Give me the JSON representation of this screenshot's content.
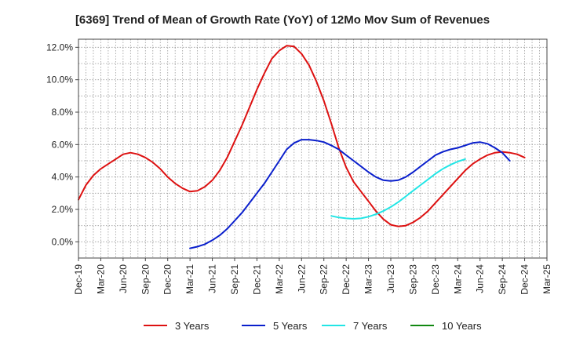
{
  "chart_data": {
    "type": "line",
    "title": "[6369]  Trend of Mean of Growth Rate (YoY) of 12Mo Mov Sum of Revenues",
    "xlabel": "",
    "ylabel": "",
    "ylim": [
      -1.0,
      12.5
    ],
    "yticks": [
      0,
      2,
      4,
      6,
      8,
      10,
      12
    ],
    "ytick_labels": [
      "0.0%",
      "2.0%",
      "4.0%",
      "6.0%",
      "8.0%",
      "10.0%",
      "12.0%"
    ],
    "x_tick_labels": [
      "Dec-19",
      "Mar-20",
      "Jun-20",
      "Sep-20",
      "Dec-20",
      "Mar-21",
      "Jun-21",
      "Sep-21",
      "Dec-21",
      "Mar-22",
      "Jun-22",
      "Sep-22",
      "Dec-22",
      "Mar-23",
      "Jun-23",
      "Sep-23",
      "Dec-23",
      "Mar-24",
      "Jun-24",
      "Sep-24",
      "Dec-24",
      "Mar-25"
    ],
    "x_range_months": [
      0,
      63
    ],
    "grid": true,
    "legend_position": "bottom",
    "series": [
      {
        "name": "3 Years",
        "color": "#dd1111",
        "points": [
          [
            0,
            2.6
          ],
          [
            1,
            3.5
          ],
          [
            2,
            4.1
          ],
          [
            3,
            4.5
          ],
          [
            4,
            4.8
          ],
          [
            5,
            5.1
          ],
          [
            6,
            5.4
          ],
          [
            7,
            5.5
          ],
          [
            8,
            5.4
          ],
          [
            9,
            5.2
          ],
          [
            10,
            4.9
          ],
          [
            11,
            4.5
          ],
          [
            12,
            4.0
          ],
          [
            13,
            3.6
          ],
          [
            14,
            3.3
          ],
          [
            15,
            3.1
          ],
          [
            16,
            3.15
          ],
          [
            17,
            3.4
          ],
          [
            18,
            3.8
          ],
          [
            19,
            4.4
          ],
          [
            20,
            5.2
          ],
          [
            21,
            6.2
          ],
          [
            22,
            7.2
          ],
          [
            23,
            8.3
          ],
          [
            24,
            9.4
          ],
          [
            25,
            10.4
          ],
          [
            26,
            11.3
          ],
          [
            27,
            11.8
          ],
          [
            28,
            12.1
          ],
          [
            29,
            12.05
          ],
          [
            30,
            11.6
          ],
          [
            31,
            10.9
          ],
          [
            32,
            9.9
          ],
          [
            33,
            8.7
          ],
          [
            34,
            7.3
          ],
          [
            35,
            5.8
          ],
          [
            36,
            4.6
          ],
          [
            37,
            3.7
          ],
          [
            38,
            3.1
          ],
          [
            39,
            2.5
          ],
          [
            40,
            1.9
          ],
          [
            41,
            1.4
          ],
          [
            42,
            1.05
          ],
          [
            43,
            0.95
          ],
          [
            44,
            1.0
          ],
          [
            45,
            1.2
          ],
          [
            46,
            1.5
          ],
          [
            47,
            1.9
          ],
          [
            48,
            2.4
          ],
          [
            49,
            2.9
          ],
          [
            50,
            3.4
          ],
          [
            51,
            3.9
          ],
          [
            52,
            4.4
          ],
          [
            53,
            4.8
          ],
          [
            54,
            5.1
          ],
          [
            55,
            5.35
          ],
          [
            56,
            5.5
          ],
          [
            57,
            5.55
          ],
          [
            58,
            5.5
          ],
          [
            59,
            5.4
          ],
          [
            60,
            5.2
          ]
        ]
      },
      {
        "name": "5 Years",
        "color": "#0a1fcc",
        "points": [
          [
            15,
            -0.4
          ],
          [
            16,
            -0.3
          ],
          [
            17,
            -0.15
          ],
          [
            18,
            0.1
          ],
          [
            19,
            0.4
          ],
          [
            20,
            0.8
          ],
          [
            21,
            1.3
          ],
          [
            22,
            1.8
          ],
          [
            23,
            2.4
          ],
          [
            24,
            3.0
          ],
          [
            25,
            3.6
          ],
          [
            26,
            4.3
          ],
          [
            27,
            5.0
          ],
          [
            28,
            5.7
          ],
          [
            29,
            6.1
          ],
          [
            30,
            6.3
          ],
          [
            31,
            6.3
          ],
          [
            32,
            6.25
          ],
          [
            33,
            6.15
          ],
          [
            34,
            5.95
          ],
          [
            35,
            5.7
          ],
          [
            36,
            5.35
          ],
          [
            37,
            5.0
          ],
          [
            38,
            4.65
          ],
          [
            39,
            4.3
          ],
          [
            40,
            4.0
          ],
          [
            41,
            3.8
          ],
          [
            42,
            3.75
          ],
          [
            43,
            3.8
          ],
          [
            44,
            4.0
          ],
          [
            45,
            4.3
          ],
          [
            46,
            4.65
          ],
          [
            47,
            5.0
          ],
          [
            48,
            5.35
          ],
          [
            49,
            5.55
          ],
          [
            50,
            5.7
          ],
          [
            51,
            5.8
          ],
          [
            52,
            5.95
          ],
          [
            53,
            6.1
          ],
          [
            54,
            6.15
          ],
          [
            55,
            6.05
          ],
          [
            56,
            5.8
          ],
          [
            57,
            5.5
          ],
          [
            58,
            5.0
          ]
        ]
      },
      {
        "name": "7 Years",
        "color": "#22e5e5",
        "points": [
          [
            34,
            1.6
          ],
          [
            35,
            1.5
          ],
          [
            36,
            1.45
          ],
          [
            37,
            1.42
          ],
          [
            38,
            1.45
          ],
          [
            39,
            1.55
          ],
          [
            40,
            1.7
          ],
          [
            41,
            1.9
          ],
          [
            42,
            2.15
          ],
          [
            43,
            2.45
          ],
          [
            44,
            2.8
          ],
          [
            45,
            3.15
          ],
          [
            46,
            3.5
          ],
          [
            47,
            3.85
          ],
          [
            48,
            4.2
          ],
          [
            49,
            4.5
          ],
          [
            50,
            4.75
          ],
          [
            51,
            4.95
          ],
          [
            52,
            5.1
          ]
        ]
      },
      {
        "name": "10 Years",
        "color": "#118811",
        "points": []
      }
    ]
  }
}
